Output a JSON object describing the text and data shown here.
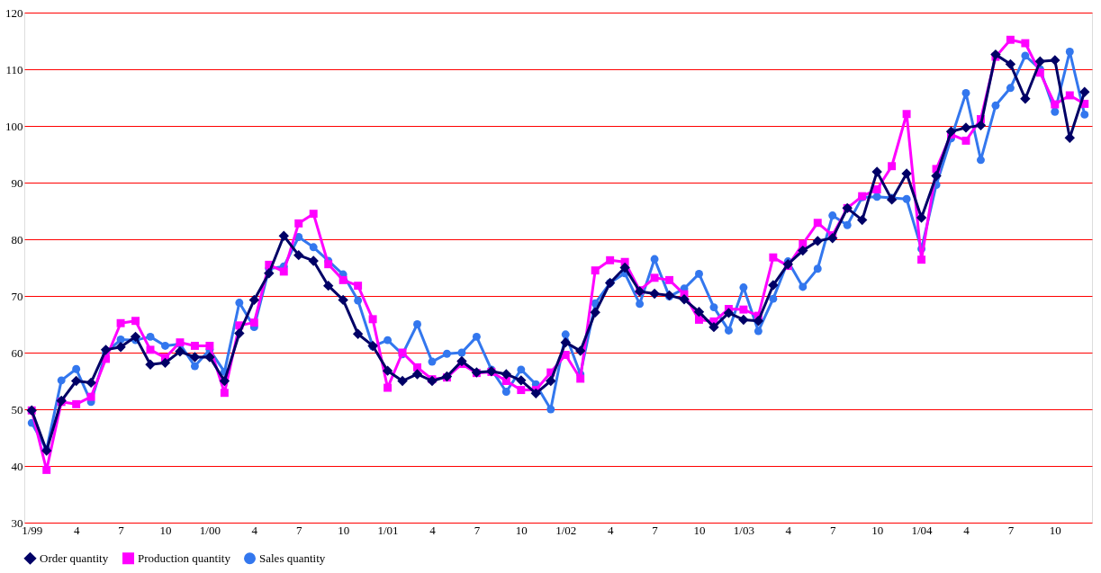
{
  "chart_data": {
    "type": "line",
    "categories": [
      "1/99",
      null,
      null,
      "4",
      null,
      null,
      "7",
      null,
      null,
      "10",
      null,
      null,
      "1/00",
      null,
      null,
      "4",
      null,
      null,
      "7",
      null,
      null,
      "10",
      null,
      null,
      "1/01",
      null,
      null,
      "4",
      null,
      null,
      "7",
      null,
      null,
      "10",
      null,
      null,
      "1/02",
      null,
      null,
      "4",
      null,
      null,
      "7",
      null,
      null,
      "10",
      null,
      null,
      "1/03",
      null,
      null,
      "4",
      null,
      null,
      "7",
      null,
      null,
      "10",
      null,
      null,
      "1/04",
      null,
      null,
      "4",
      null,
      null,
      "7",
      null,
      null,
      "10",
      null,
      null
    ],
    "series": [
      {
        "name": "Order quantity",
        "color": "#000066",
        "marker": "diamond",
        "values": [
          49.8,
          42.7,
          51.5,
          55.0,
          54.7,
          60.5,
          61.0,
          62.8,
          57.9,
          58.2,
          60.2,
          59.2,
          59.2,
          55.0,
          63.4,
          69.3,
          74.0,
          80.6,
          77.2,
          76.2,
          71.8,
          69.3,
          63.3,
          61.2,
          56.8,
          55.0,
          56.2,
          55.0,
          55.8,
          58.5,
          56.5,
          56.7,
          56.2,
          55.1,
          52.8,
          55.0,
          61.8,
          60.3,
          67.1,
          72.3,
          75.0,
          70.8,
          70.4,
          70.1,
          69.4,
          67.2,
          64.5,
          67.0,
          65.8,
          65.6,
          71.9,
          75.6,
          78.0,
          79.7,
          80.2,
          85.5,
          83.4,
          91.9,
          87.0,
          91.6,
          83.8,
          91.2,
          99.0,
          99.7,
          100.1,
          112.6,
          110.9,
          104.8,
          111.4,
          111.6,
          97.9,
          106.0
        ]
      },
      {
        "name": "Production quantity",
        "color": "#ff00ff",
        "marker": "square",
        "values": [
          49.8,
          39.3,
          51.3,
          50.9,
          52.2,
          58.9,
          65.2,
          65.6,
          60.5,
          59.1,
          61.8,
          61.2,
          61.2,
          52.9,
          64.8,
          65.3,
          75.5,
          74.3,
          82.8,
          84.5,
          75.6,
          72.8,
          71.8,
          65.9,
          53.8,
          60.0,
          57.4,
          55.3,
          55.6,
          58.0,
          56.4,
          56.6,
          55.0,
          53.4,
          53.4,
          56.5,
          59.6,
          55.4,
          74.5,
          76.3,
          76.0,
          71.0,
          73.2,
          72.8,
          70.3,
          65.8,
          65.5,
          67.7,
          67.6,
          66.5,
          76.8,
          75.3,
          79.2,
          82.9,
          80.7,
          85.5,
          87.6,
          88.8,
          92.9,
          102.1,
          76.4,
          92.4,
          98.5,
          97.4,
          101.2,
          112.2,
          115.2,
          114.6,
          109.4,
          103.8,
          105.4,
          103.9
        ]
      },
      {
        "name": "Sales quantity",
        "color": "#3377ee",
        "marker": "circle",
        "values": [
          47.6,
          42.9,
          55.1,
          57.1,
          51.3,
          60.0,
          62.3,
          62.2,
          62.8,
          61.2,
          61.5,
          57.6,
          60.5,
          56.6,
          68.8,
          64.5,
          74.8,
          75.2,
          80.4,
          78.6,
          76.2,
          73.8,
          69.2,
          61.1,
          62.2,
          59.7,
          65.0,
          58.4,
          59.8,
          60.0,
          62.8,
          57.0,
          53.1,
          57.0,
          54.4,
          50.0,
          63.2,
          56.2,
          68.7,
          72.3,
          74.0,
          68.6,
          76.5,
          69.9,
          71.3,
          73.9,
          68.0,
          63.9,
          71.5,
          63.8,
          69.5,
          76.1,
          71.6,
          74.8,
          84.2,
          82.5,
          87.4,
          87.5,
          87.3,
          87.1,
          78.3,
          89.6,
          97.8,
          105.8,
          94.0,
          103.6,
          106.7,
          112.4,
          110.0,
          102.5,
          113.1,
          102.0
        ]
      }
    ],
    "ylim": [
      30,
      120
    ],
    "yticks": [
      30,
      40,
      50,
      60,
      70,
      80,
      90,
      100,
      110,
      120
    ],
    "grid": "y",
    "legend": "bottom",
    "line_style": "solid"
  }
}
